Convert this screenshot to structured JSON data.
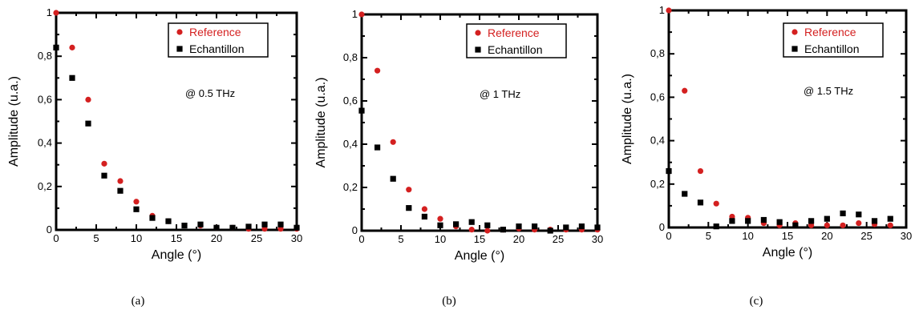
{
  "colors": {
    "reference": "#d42020",
    "echantillon": "#000000",
    "frame": "#000000"
  },
  "charts": [
    {
      "caption": "(a)",
      "annotation": "@ 0.5 THz",
      "chart_data": {
        "type": "scatter",
        "xlabel": "Angle (°)",
        "ylabel": "Amplitude (u.a.)",
        "xlim": [
          0,
          30
        ],
        "ylim": [
          0,
          1
        ],
        "x_ticks": [
          "0",
          "5",
          "10",
          "15",
          "20",
          "25",
          "30"
        ],
        "y_ticks": [
          "0",
          "0,2",
          "0,4",
          "0,6",
          "0,8",
          "1"
        ],
        "legend": {
          "placement": "top-right",
          "entries": [
            "Reference",
            "Echantillon"
          ]
        },
        "series": [
          {
            "name": "Reference",
            "marker": "circle",
            "x": [
              0,
              2,
              4,
              6,
              8,
              10,
              12,
              14,
              16,
              18,
              20,
              22,
              24,
              26,
              28,
              30
            ],
            "y": [
              1.0,
              0.84,
              0.6,
              0.305,
              0.225,
              0.13,
              0.065,
              0.04,
              0.02,
              0.02,
              0.01,
              0.01,
              0.005,
              0.005,
              0.005,
              0.005
            ]
          },
          {
            "name": "Echantillon",
            "marker": "square",
            "x": [
              0,
              2,
              4,
              6,
              8,
              10,
              12,
              14,
              16,
              18,
              20,
              22,
              24,
              26,
              28,
              30
            ],
            "y": [
              0.84,
              0.7,
              0.49,
              0.25,
              0.18,
              0.095,
              0.055,
              0.04,
              0.02,
              0.025,
              0.01,
              0.01,
              0.015,
              0.025,
              0.025,
              0.01
            ]
          }
        ]
      }
    },
    {
      "caption": "(b)",
      "annotation": "@ 1 THz",
      "chart_data": {
        "type": "scatter",
        "xlabel": "Angle (°)",
        "ylabel": "Amplitude (u.a.)",
        "xlim": [
          0,
          30
        ],
        "ylim": [
          0,
          1
        ],
        "x_ticks": [
          "0",
          "5",
          "10",
          "15",
          "20",
          "25",
          "30"
        ],
        "y_ticks": [
          "0",
          "0,2",
          "0,4",
          "0,6",
          "0,8",
          "1"
        ],
        "legend": {
          "placement": "top-right",
          "entries": [
            "Reference",
            "Echantillon"
          ]
        },
        "series": [
          {
            "name": "Reference",
            "marker": "circle",
            "x": [
              0,
              2,
              4,
              6,
              8,
              10,
              12,
              14,
              16,
              18,
              20,
              22,
              24,
              26,
              28,
              30
            ],
            "y": [
              1.0,
              0.74,
              0.41,
              0.19,
              0.1,
              0.055,
              0.02,
              0.005,
              0.0,
              0.005,
              0.01,
              0.005,
              0.005,
              0.005,
              0.005,
              0.005
            ]
          },
          {
            "name": "Echantillon",
            "marker": "square",
            "x": [
              0,
              2,
              4,
              6,
              8,
              10,
              12,
              14,
              16,
              18,
              20,
              22,
              24,
              26,
              28,
              30
            ],
            "y": [
              0.555,
              0.385,
              0.24,
              0.105,
              0.065,
              0.025,
              0.03,
              0.04,
              0.025,
              0.005,
              0.02,
              0.02,
              0.0,
              0.015,
              0.02,
              0.015
            ]
          }
        ]
      }
    },
    {
      "caption": "(c)",
      "annotation": "@ 1.5 THz",
      "chart_data": {
        "type": "scatter",
        "xlabel": "Angle (°)",
        "ylabel": "Amplitude (u.a.)",
        "xlim": [
          0,
          30
        ],
        "ylim": [
          0,
          1
        ],
        "x_ticks": [
          "0",
          "5",
          "10",
          "15",
          "20",
          "25",
          "30"
        ],
        "y_ticks": [
          "0",
          "0,2",
          "0,4",
          "0,6",
          "0,8",
          "1"
        ],
        "legend": {
          "placement": "top-right",
          "entries": [
            "Reference",
            "Echantillon"
          ]
        },
        "series": [
          {
            "name": "Reference",
            "marker": "circle",
            "x": [
              0,
              2,
              4,
              6,
              8,
              10,
              12,
              14,
              16,
              18,
              20,
              22,
              24,
              26,
              28
            ],
            "y": [
              1.0,
              0.63,
              0.26,
              0.11,
              0.05,
              0.045,
              0.02,
              0.01,
              0.02,
              0.01,
              0.01,
              0.01,
              0.02,
              0.015,
              0.01
            ]
          },
          {
            "name": "Echantillon",
            "marker": "square",
            "x": [
              0,
              2,
              4,
              6,
              8,
              10,
              12,
              14,
              16,
              18,
              20,
              22,
              24,
              26,
              28
            ],
            "y": [
              0.26,
              0.155,
              0.115,
              0.005,
              0.03,
              0.03,
              0.035,
              0.025,
              0.01,
              0.03,
              0.04,
              0.065,
              0.06,
              0.03,
              0.04
            ]
          }
        ]
      }
    }
  ]
}
